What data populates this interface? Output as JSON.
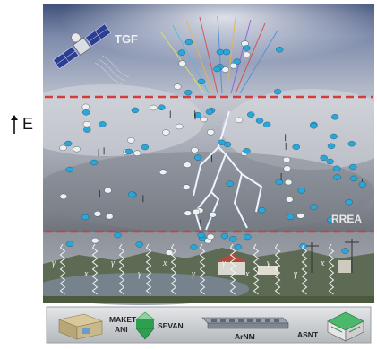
{
  "side_label": "E",
  "labels": {
    "satellite": "TGF",
    "avalanche": "RREA",
    "gamma": "γ",
    "x_ray": "x"
  },
  "detectors": {
    "maket_ani": "MAKET\nANI",
    "maket": "MAKET",
    "ani": "ANI",
    "sevan": "SEVAN",
    "arnm": "ArNM",
    "asnt": "ASNT"
  },
  "colors": {
    "sky_top": "#4e5f8a",
    "cloud": "#c9cdd6",
    "boundary_line": "#d43b3b",
    "electron": "#2aa6d8",
    "positron": "#e8e8e8",
    "lightning": "#eef3ff",
    "ground_panel": "#c8ccd0",
    "sevan_green": "#2e9e4f"
  }
}
